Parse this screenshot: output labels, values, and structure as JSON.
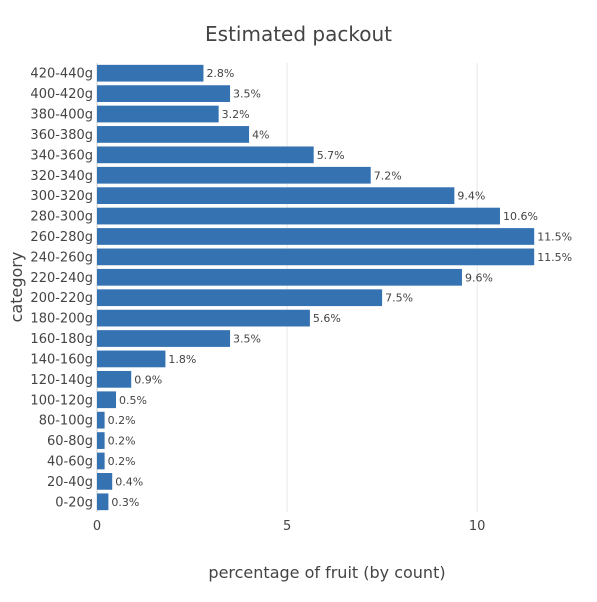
{
  "chart_data": {
    "type": "bar",
    "orientation": "horizontal",
    "title": "Estimated packout",
    "xlabel": "percentage of fruit (by count)",
    "ylabel": "category",
    "xlim": [
      0,
      12.1
    ],
    "x_ticks": [
      0,
      5,
      10
    ],
    "grid": true,
    "legend": "none",
    "bar_color": "#3472b2",
    "categories": [
      "0-20g",
      "20-40g",
      "40-60g",
      "60-80g",
      "80-100g",
      "100-120g",
      "120-140g",
      "140-160g",
      "160-180g",
      "180-200g",
      "200-220g",
      "220-240g",
      "240-260g",
      "260-280g",
      "280-300g",
      "300-320g",
      "320-340g",
      "340-360g",
      "360-380g",
      "380-400g",
      "400-420g",
      "420-440g"
    ],
    "values": [
      0.3,
      0.4,
      0.2,
      0.2,
      0.2,
      0.5,
      0.9,
      1.8,
      3.5,
      5.6,
      7.5,
      9.6,
      11.5,
      11.5,
      10.6,
      9.4,
      7.2,
      5.7,
      4,
      3.2,
      3.5,
      2.8
    ],
    "data_labels": [
      "0.3%",
      "0.4%",
      "0.2%",
      "0.2%",
      "0.2%",
      "0.5%",
      "0.9%",
      "1.8%",
      "3.5%",
      "5.6%",
      "7.5%",
      "9.6%",
      "11.5%",
      "11.5%",
      "10.6%",
      "9.4%",
      "7.2%",
      "5.7%",
      "4%",
      "3.2%",
      "3.5%",
      "2.8%"
    ]
  }
}
